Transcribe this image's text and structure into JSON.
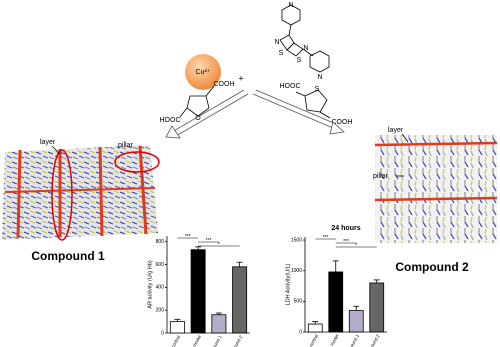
{
  "reaction": {
    "metal": "Cu²⁺",
    "plus": "+",
    "ligand_atoms": [
      "N",
      "N",
      "S",
      "N",
      "S",
      "N"
    ],
    "furan": {
      "left_group": "HOOC",
      "right_group": "COOH",
      "ring_atom": "O"
    },
    "thiophene": {
      "left_group": "HOOC",
      "right_group": "COOH",
      "ring_atom": "S"
    }
  },
  "structures": [
    {
      "name": "Compound 1",
      "layer_label": "layer",
      "pillar_label": "pillar"
    },
    {
      "name": "Compound 2",
      "layer_label": "layer",
      "pillar_label": "pillar"
    }
  ],
  "chart_data": [
    {
      "type": "bar",
      "y_label": "AR activity (U/g Hb)",
      "categories": [
        "control",
        "model",
        "compound 1",
        "compound 2"
      ],
      "values": [
        100,
        730,
        160,
        580
      ],
      "errors": [
        20,
        25,
        15,
        40
      ],
      "colors": [
        "#ffffff",
        "#000000",
        "#b4acc9",
        "#666666"
      ],
      "ylim": [
        0,
        850
      ],
      "yticks": [
        0,
        200,
        400,
        600,
        800
      ],
      "significance": [
        "***",
        "***",
        "*"
      ]
    },
    {
      "type": "bar",
      "title": "24 hours",
      "y_label": "LDH Activity(U/L)",
      "categories": [
        "control",
        "model",
        "compound 1",
        "compound 2"
      ],
      "values": [
        130,
        980,
        350,
        800
      ],
      "errors": [
        40,
        180,
        70,
        50
      ],
      "colors": [
        "#ffffff",
        "#000000",
        "#b4acc9",
        "#666666"
      ],
      "ylim": [
        0,
        1550
      ],
      "yticks": [
        0,
        500,
        1000,
        1500
      ],
      "significance": [
        "***",
        "***",
        "*"
      ]
    }
  ]
}
